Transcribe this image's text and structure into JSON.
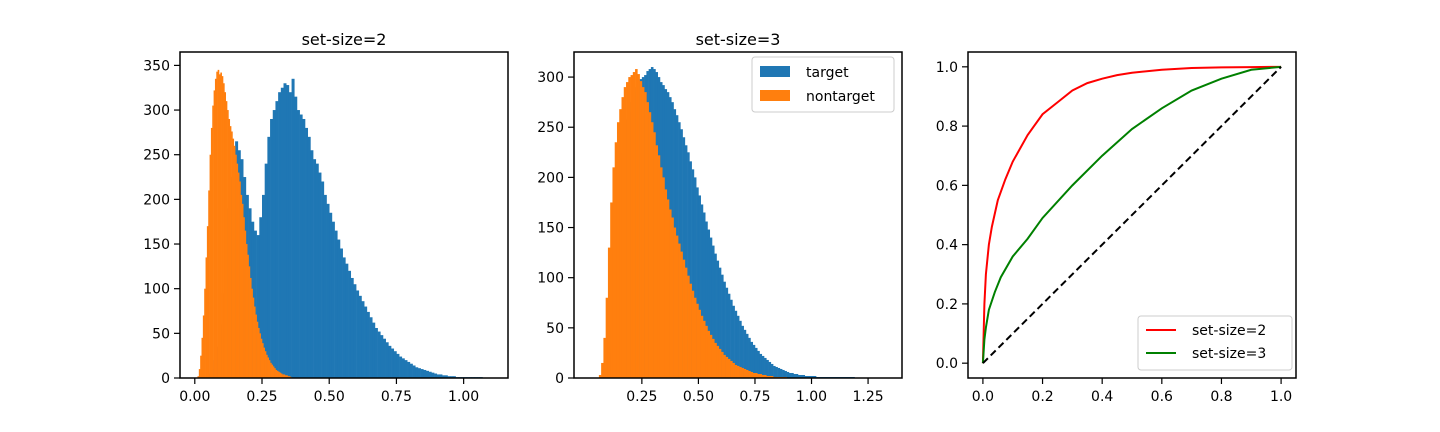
{
  "chart_data": [
    {
      "type": "bar",
      "subtype": "histogram",
      "title": "set-size=2",
      "xlim": [
        -0.055,
        1.165
      ],
      "ylim": [
        0,
        365
      ],
      "xticks": [
        0.0,
        0.25,
        0.5,
        0.75,
        1.0
      ],
      "xtick_labels": [
        "0.00",
        "0.25",
        "0.50",
        "0.75",
        "1.00"
      ],
      "yticks": [
        0,
        50,
        100,
        150,
        200,
        250,
        300,
        350
      ],
      "ytick_labels": [
        "0",
        "50",
        "100",
        "150",
        "200",
        "250",
        "300",
        "350"
      ],
      "legend": null,
      "series": [
        {
          "name": "target",
          "color": "#1f77b4",
          "bin_start": 0.05,
          "bin_width": 0.01,
          "counts": [
            5,
            10,
            20,
            35,
            60,
            95,
            140,
            190,
            225,
            255,
            265,
            255,
            245,
            225,
            205,
            190,
            175,
            165,
            160,
            180,
            205,
            240,
            270,
            290,
            300,
            310,
            320,
            325,
            330,
            328,
            320,
            335,
            315,
            300,
            295,
            290,
            280,
            270,
            255,
            245,
            240,
            230,
            220,
            205,
            195,
            185,
            175,
            165,
            155,
            145,
            135,
            128,
            120,
            112,
            105,
            98,
            92,
            86,
            80,
            74,
            68,
            62,
            56,
            52,
            48,
            44,
            40,
            36,
            33,
            30,
            27,
            24,
            22,
            20,
            18,
            16,
            14,
            12,
            11,
            10,
            9,
            8,
            7,
            6,
            5,
            4,
            4,
            3,
            3,
            2,
            2,
            2,
            1,
            1,
            1,
            1,
            1,
            1,
            1,
            1,
            1,
            1
          ]
        },
        {
          "name": "nontarget",
          "color": "#ff7f0e",
          "bin_start": 0.01,
          "bin_width": 0.005,
          "counts": [
            2,
            10,
            25,
            45,
            70,
            100,
            135,
            170,
            210,
            250,
            280,
            305,
            322,
            335,
            343,
            345,
            340,
            342,
            338,
            330,
            320,
            310,
            300,
            290,
            282,
            276,
            268,
            260,
            250,
            240,
            230,
            220,
            205,
            195,
            180,
            165,
            150,
            138,
            125,
            112,
            100,
            90,
            80,
            71,
            63,
            56,
            50,
            44,
            39,
            34,
            30,
            26,
            23,
            20,
            17,
            15,
            13,
            11,
            9,
            8,
            7,
            6,
            5,
            4,
            4,
            3,
            3,
            2,
            2,
            1
          ]
        }
      ]
    },
    {
      "type": "bar",
      "subtype": "histogram",
      "title": "set-size=3",
      "xlim": [
        -0.05,
        1.4
      ],
      "ylim": [
        0,
        325
      ],
      "xticks": [
        0.25,
        0.5,
        0.75,
        1.0,
        1.25
      ],
      "xtick_labels": [
        "0.25",
        "0.50",
        "0.75",
        "1.00",
        "1.25"
      ],
      "yticks": [
        0,
        50,
        100,
        150,
        200,
        250,
        300
      ],
      "ytick_labels": [
        "0",
        "50",
        "100",
        "150",
        "200",
        "250",
        "300"
      ],
      "legend": {
        "loc": "upper right",
        "entries": [
          "target",
          "nontarget"
        ]
      },
      "series": [
        {
          "name": "target",
          "color": "#1f77b4",
          "bin_start": 0.08,
          "bin_width": 0.01,
          "counts": [
            3,
            10,
            25,
            50,
            90,
            140,
            185,
            210,
            225,
            245,
            258,
            265,
            275,
            285,
            290,
            295,
            298,
            300,
            302,
            306,
            308,
            310,
            308,
            305,
            300,
            295,
            292,
            288,
            285,
            280,
            275,
            268,
            262,
            255,
            248,
            240,
            232,
            225,
            216,
            208,
            200,
            190,
            182,
            173,
            165,
            156,
            148,
            140,
            132,
            124,
            117,
            110,
            103,
            96,
            90,
            84,
            78,
            72,
            67,
            62,
            57,
            52,
            48,
            44,
            40,
            36,
            33,
            30,
            27,
            24,
            22,
            20,
            18,
            16,
            14,
            12,
            11,
            10,
            9,
            8,
            7,
            6,
            5,
            5,
            4,
            4,
            3,
            3,
            3,
            2,
            2,
            2,
            2,
            2,
            1,
            1,
            1,
            1,
            1,
            1,
            1,
            1,
            1,
            1,
            1,
            1,
            1,
            1,
            1,
            1,
            1
          ]
        },
        {
          "name": "nontarget",
          "color": "#ff7f0e",
          "bin_start": 0.06,
          "bin_width": 0.01,
          "counts": [
            3,
            15,
            40,
            80,
            130,
            175,
            210,
            235,
            255,
            268,
            280,
            290,
            295,
            300,
            302,
            305,
            308,
            303,
            296,
            290,
            285,
            275,
            265,
            255,
            245,
            232,
            222,
            210,
            200,
            188,
            178,
            168,
            160,
            150,
            142,
            134,
            126,
            118,
            110,
            102,
            94,
            87,
            80,
            74,
            68,
            62,
            57,
            52,
            47,
            43,
            39,
            35,
            32,
            29,
            26,
            23,
            21,
            19,
            17,
            15,
            13,
            12,
            11,
            10,
            9,
            8,
            7,
            6,
            5,
            5,
            4,
            4,
            3,
            3,
            2,
            2,
            2,
            1,
            1,
            1,
            1,
            1,
            1
          ]
        }
      ]
    },
    {
      "type": "line",
      "title": "",
      "xlim": [
        -0.05,
        1.05
      ],
      "ylim": [
        -0.05,
        1.05
      ],
      "xticks": [
        0.0,
        0.2,
        0.4,
        0.6,
        0.8,
        1.0
      ],
      "xtick_labels": [
        "0.0",
        "0.2",
        "0.4",
        "0.6",
        "0.8",
        "1.0"
      ],
      "yticks": [
        0.0,
        0.2,
        0.4,
        0.6,
        0.8,
        1.0
      ],
      "ytick_labels": [
        "0.0",
        "0.2",
        "0.4",
        "0.6",
        "0.8",
        "1.0"
      ],
      "legend": {
        "loc": "lower right",
        "entries": [
          "set-size=2",
          "set-size=3"
        ]
      },
      "series": [
        {
          "name": "set-size=2",
          "color": "#ff0000",
          "style": "solid",
          "x": [
            0.0,
            0.005,
            0.01,
            0.02,
            0.03,
            0.05,
            0.075,
            0.1,
            0.15,
            0.2,
            0.25,
            0.3,
            0.35,
            0.4,
            0.45,
            0.5,
            0.6,
            0.7,
            0.8,
            0.9,
            1.0
          ],
          "y": [
            0.0,
            0.2,
            0.3,
            0.4,
            0.46,
            0.55,
            0.62,
            0.68,
            0.77,
            0.84,
            0.88,
            0.92,
            0.945,
            0.96,
            0.972,
            0.98,
            0.99,
            0.996,
            0.998,
            0.999,
            1.0
          ]
        },
        {
          "name": "set-size=3",
          "color": "#008000",
          "style": "solid",
          "x": [
            0.0,
            0.005,
            0.01,
            0.02,
            0.04,
            0.06,
            0.1,
            0.15,
            0.2,
            0.3,
            0.4,
            0.5,
            0.6,
            0.7,
            0.8,
            0.9,
            1.0
          ],
          "y": [
            0.0,
            0.08,
            0.12,
            0.18,
            0.24,
            0.29,
            0.36,
            0.42,
            0.49,
            0.6,
            0.7,
            0.79,
            0.86,
            0.92,
            0.96,
            0.99,
            1.0
          ]
        },
        {
          "name": "",
          "color": "#000000",
          "style": "dashed",
          "x": [
            0.0,
            1.0
          ],
          "y": [
            0.0,
            1.0
          ]
        }
      ]
    }
  ]
}
